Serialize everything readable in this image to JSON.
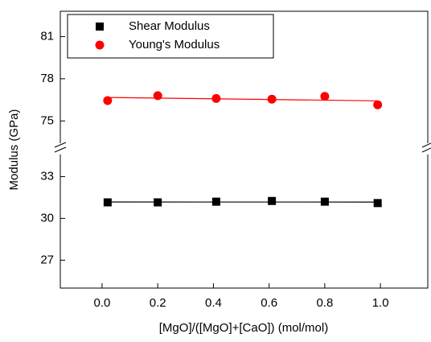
{
  "chart_data": {
    "type": "scatter",
    "x_label": "[MgO]/([MgO]+[CaO]) (mol/mol)",
    "y_label": "Modulus (GPa)",
    "x": [
      0.02,
      0.2,
      0.41,
      0.61,
      0.8,
      0.99
    ],
    "xlim": [
      -0.15,
      1.17
    ],
    "xticks": [
      {
        "value": 0,
        "label": "0.0"
      },
      0.2,
      0.4,
      0.6,
      0.8,
      {
        "value": 1,
        "label": "1.0"
      }
    ],
    "y_segments": [
      {
        "ylim": [
          25,
          34.7
        ],
        "yticks": [
          27,
          30,
          33
        ]
      },
      {
        "ylim": [
          73.3,
          82.8
        ],
        "yticks": [
          75,
          78,
          81
        ]
      }
    ],
    "fit_lines": true,
    "legend": "upper left",
    "series": [
      {
        "name": "Shear Modulus",
        "color": "#000000",
        "marker": "square",
        "values": [
          31.15,
          31.15,
          31.2,
          31.25,
          31.2,
          31.1
        ]
      },
      {
        "name": "Young's Modulus",
        "color": "#ff0000",
        "marker": "circle",
        "values": [
          76.45,
          76.8,
          76.6,
          76.55,
          76.75,
          76.15
        ]
      }
    ]
  }
}
